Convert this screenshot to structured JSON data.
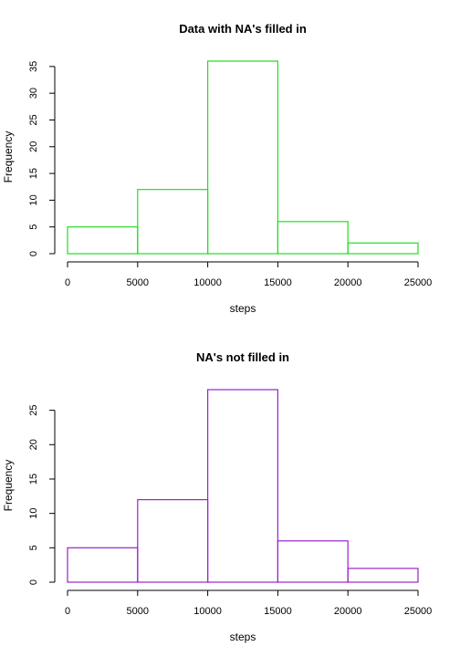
{
  "chart_data": [
    {
      "type": "bar",
      "title": "Data with NA's filled in",
      "xlabel": "steps",
      "ylabel": "Frequency",
      "bin_edges": [
        0,
        5000,
        10000,
        15000,
        20000,
        25000
      ],
      "values": [
        5,
        12,
        36,
        6,
        2
      ],
      "x_ticks": [
        0,
        5000,
        10000,
        15000,
        20000,
        25000
      ],
      "y_ticks": [
        0,
        5,
        10,
        15,
        20,
        25,
        30,
        35
      ],
      "xlim": [
        0,
        25000
      ],
      "ylim": [
        0,
        36
      ],
      "grid": false,
      "color": "#22dd22"
    },
    {
      "type": "bar",
      "title": "NA's not filled in",
      "xlabel": "steps",
      "ylabel": "Frequency",
      "bin_edges": [
        0,
        5000,
        10000,
        15000,
        20000,
        25000
      ],
      "values": [
        5,
        12,
        28,
        6,
        2
      ],
      "x_ticks": [
        0,
        5000,
        10000,
        15000,
        20000,
        25000
      ],
      "y_ticks": [
        0,
        5,
        10,
        15,
        20,
        25
      ],
      "xlim": [
        0,
        25000
      ],
      "ylim": [
        0,
        28
      ],
      "grid": false,
      "color": "#9a22cc"
    }
  ]
}
